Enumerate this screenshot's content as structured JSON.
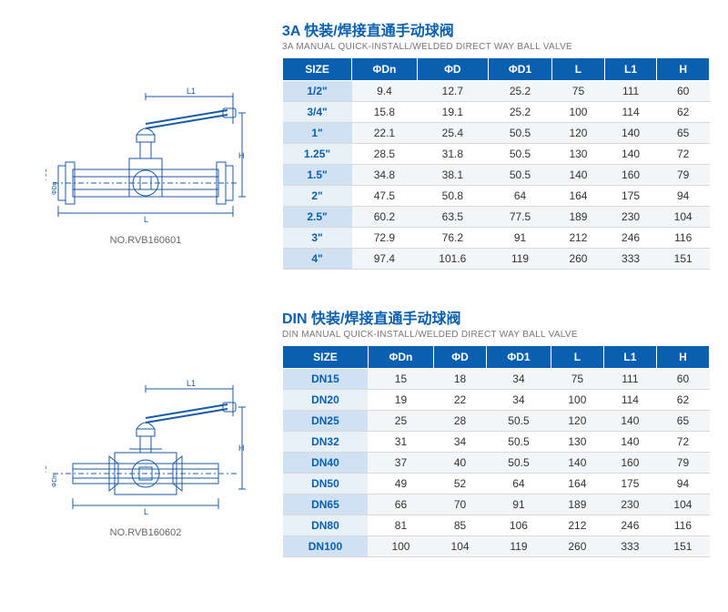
{
  "colors": {
    "accent": "#0a5fb0",
    "header_bg": "#0a5fb0",
    "size_col_odd": "#cfe1f2",
    "size_col_even": "#e8f0f8",
    "row_odd": "#f3f5f7",
    "row_even": "#ffffff",
    "border": "#d9d9d9",
    "diagram_stroke": "#1b5aa6",
    "text": "#333333",
    "subtitle": "#777777"
  },
  "section1": {
    "title_cn": "3A 快装/焊接直通手动球阀",
    "title_en": "3A MANUAL QUICK-INSTALL/WELDED DIRECT WAY BALL VALVE",
    "part_no": "NO.RVB160601",
    "columns": [
      "SIZE",
      "ΦDn",
      "ΦD",
      "ΦD1",
      "L",
      "L1",
      "H"
    ],
    "rows": [
      [
        "1/2\"",
        "9.4",
        "12.7",
        "25.2",
        "75",
        "111",
        "60"
      ],
      [
        "3/4\"",
        "15.8",
        "19.1",
        "25.2",
        "100",
        "114",
        "62"
      ],
      [
        "1\"",
        "22.1",
        "25.4",
        "50.5",
        "120",
        "140",
        "65"
      ],
      [
        "1.25\"",
        "28.5",
        "31.8",
        "50.5",
        "130",
        "140",
        "72"
      ],
      [
        "1.5\"",
        "34.8",
        "38.1",
        "50.5",
        "140",
        "160",
        "79"
      ],
      [
        "2\"",
        "47.5",
        "50.8",
        "64",
        "164",
        "175",
        "94"
      ],
      [
        "2.5\"",
        "60.2",
        "63.5",
        "77.5",
        "189",
        "230",
        "104"
      ],
      [
        "3\"",
        "72.9",
        "76.2",
        "91",
        "212",
        "246",
        "116"
      ],
      [
        "4\"",
        "97.4",
        "101.6",
        "119",
        "260",
        "333",
        "151"
      ]
    ]
  },
  "section2": {
    "title_cn": "DIN 快装/焊接直通手动球阀",
    "title_en": "DIN MANUAL QUICK-INSTALL/WELDED DIRECT WAY BALL VALVE",
    "part_no": "NO.RVB160602",
    "columns": [
      "SIZE",
      "ΦDn",
      "ΦD",
      "ΦD1",
      "L",
      "L1",
      "H"
    ],
    "rows": [
      [
        "DN15",
        "15",
        "18",
        "34",
        "75",
        "111",
        "60"
      ],
      [
        "DN20",
        "19",
        "22",
        "34",
        "100",
        "114",
        "62"
      ],
      [
        "DN25",
        "25",
        "28",
        "50.5",
        "120",
        "140",
        "65"
      ],
      [
        "DN32",
        "31",
        "34",
        "50.5",
        "130",
        "140",
        "72"
      ],
      [
        "DN40",
        "37",
        "40",
        "50.5",
        "140",
        "160",
        "79"
      ],
      [
        "DN50",
        "49",
        "52",
        "64",
        "164",
        "175",
        "94"
      ],
      [
        "DN65",
        "66",
        "70",
        "91",
        "189",
        "230",
        "104"
      ],
      [
        "DN80",
        "81",
        "85",
        "106",
        "212",
        "246",
        "116"
      ],
      [
        "DN100",
        "100",
        "104",
        "119",
        "260",
        "333",
        "151"
      ]
    ]
  }
}
